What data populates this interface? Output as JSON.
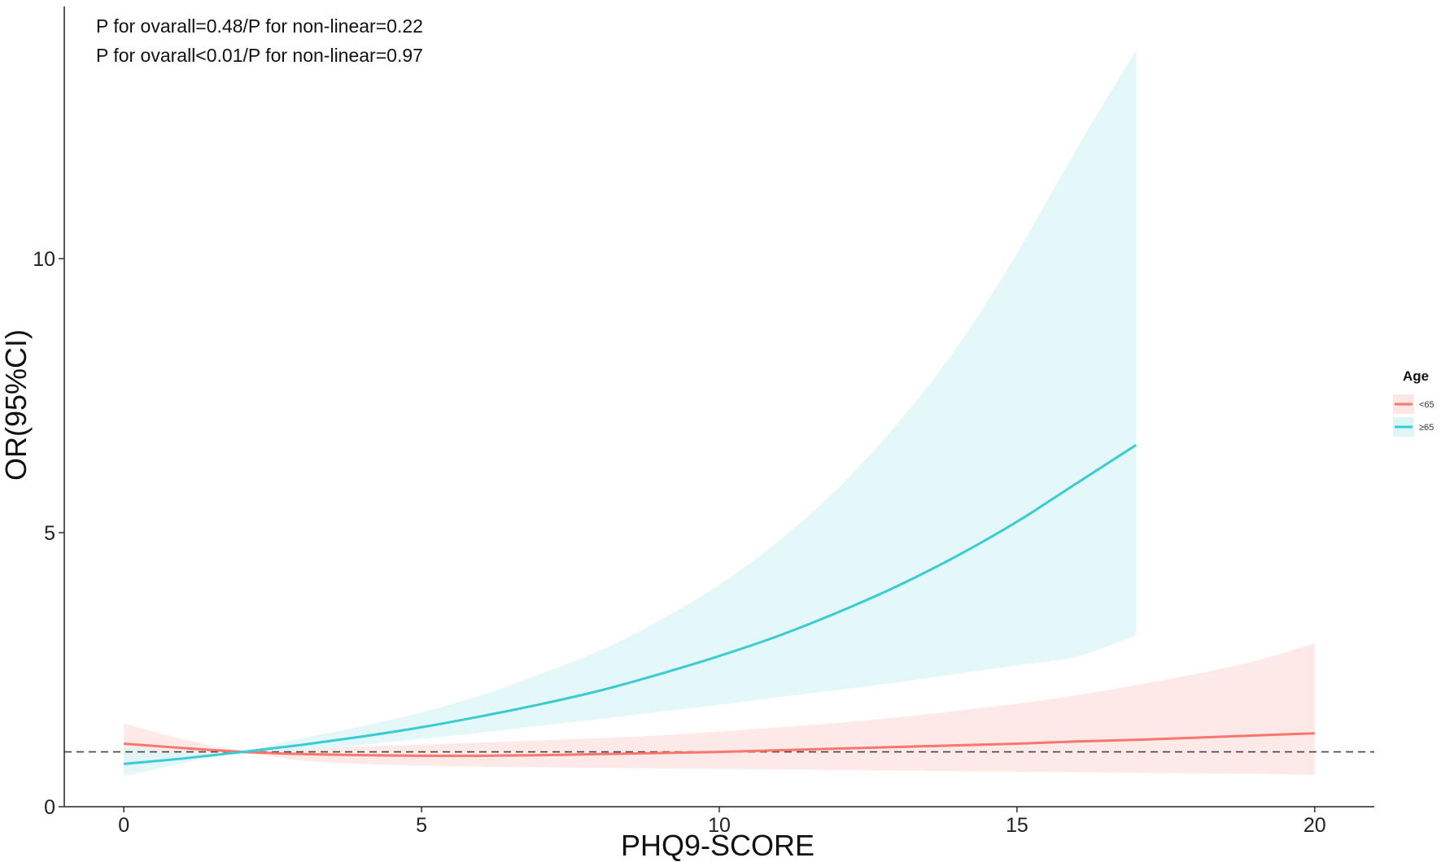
{
  "chart_data": {
    "type": "line",
    "title": "",
    "xlabel": "PHQ9-SCORE",
    "ylabel": "OR(95%CI)",
    "xlim": [
      -1,
      21
    ],
    "ylim": [
      0,
      14.6
    ],
    "x_ticks": [
      0,
      5,
      10,
      15,
      20
    ],
    "x_tick_labels": [
      "0",
      "5",
      "10",
      "15",
      "20"
    ],
    "y_ticks": [
      0,
      5,
      10
    ],
    "y_tick_labels": [
      "0",
      "5",
      "10"
    ],
    "grid": false,
    "legend_placement": "right",
    "legend_title": "Age",
    "reference_line": {
      "y": 1,
      "style": "dashed",
      "color": "#444444"
    },
    "annotations": [
      "P for ovarall=0.48/P for non-linear=0.22",
      "P for ovarall<0.01/P for non-linear=0.97"
    ],
    "series": [
      {
        "name": "<65",
        "color": "#F8766D",
        "band_color": "#FDE6E4",
        "x": [
          0,
          1,
          2,
          3,
          4,
          5,
          6,
          7,
          8,
          9,
          10,
          11,
          12,
          13,
          14,
          15,
          16,
          17,
          18,
          19,
          20
        ],
        "y": [
          1.15,
          1.07,
          1.0,
          0.96,
          0.94,
          0.93,
          0.93,
          0.94,
          0.96,
          0.98,
          1.0,
          1.03,
          1.06,
          1.09,
          1.12,
          1.15,
          1.19,
          1.22,
          1.26,
          1.3,
          1.34
        ],
        "lower": [
          0.72,
          0.86,
          0.97,
          0.84,
          0.78,
          0.75,
          0.73,
          0.72,
          0.71,
          0.7,
          0.69,
          0.68,
          0.67,
          0.66,
          0.65,
          0.64,
          0.63,
          0.62,
          0.61,
          0.6,
          0.58
        ],
        "upper": [
          1.52,
          1.23,
          1.03,
          1.07,
          1.1,
          1.13,
          1.17,
          1.21,
          1.25,
          1.3,
          1.37,
          1.45,
          1.53,
          1.63,
          1.75,
          1.88,
          2.03,
          2.22,
          2.42,
          2.66,
          2.98
        ]
      },
      {
        "name": "≥65",
        "color": "#39CCD2",
        "band_color": "#DFF6F8",
        "x": [
          0,
          1,
          2,
          3,
          4,
          5,
          6,
          7,
          8,
          9,
          10,
          11,
          12,
          13,
          14,
          15,
          16,
          17
        ],
        "y": [
          0.78,
          0.88,
          1.0,
          1.13,
          1.28,
          1.45,
          1.65,
          1.87,
          2.12,
          2.42,
          2.75,
          3.12,
          3.55,
          4.03,
          4.58,
          5.2,
          5.9,
          6.6
        ],
        "lower": [
          0.55,
          0.8,
          0.98,
          1.03,
          1.13,
          1.24,
          1.35,
          1.48,
          1.6,
          1.73,
          1.86,
          2.0,
          2.13,
          2.27,
          2.42,
          2.58,
          2.74,
          3.12
        ],
        "upper": [
          1.1,
          0.98,
          1.02,
          1.25,
          1.47,
          1.72,
          2.03,
          2.42,
          2.85,
          3.4,
          4.05,
          4.85,
          5.82,
          7.0,
          8.4,
          10.1,
          12.0,
          13.8
        ]
      }
    ]
  }
}
